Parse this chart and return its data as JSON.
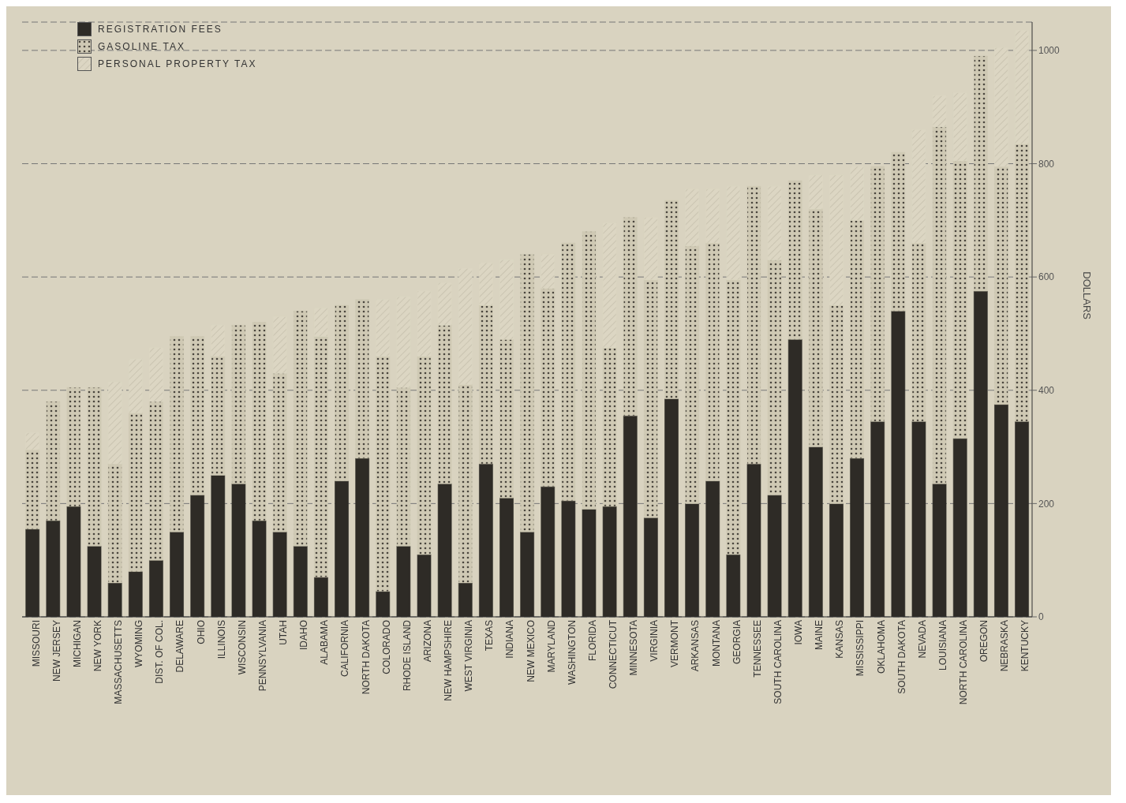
{
  "chart_data": {
    "type": "bar",
    "stacked": true,
    "ylabel": "DOLLARS",
    "categories": [
      "MISSOURI",
      "NEW JERSEY",
      "MICHIGAN",
      "NEW YORK",
      "MASSACHUSETTS",
      "WYOMING",
      "DIST. OF COL.",
      "DELAWARE",
      "OHIO",
      "ILLINOIS",
      "WISCONSIN",
      "PENNSYLVANIA",
      "UTAH",
      "IDAHO",
      "ALABAMA",
      "CALIFORNIA",
      "NORTH DAKOTA",
      "COLORADO",
      "RHODE ISLAND",
      "ARIZONA",
      "NEW HAMPSHIRE",
      "WEST VIRGINIA",
      "TEXAS",
      "INDIANA",
      "NEW MEXICO",
      "MARYLAND",
      "WASHINGTON",
      "FLORIDA",
      "CONNECTICUT",
      "MINNESOTA",
      "VIRGINIA",
      "VERMONT",
      "ARKANSAS",
      "MONTANA",
      "GEORGIA",
      "TENNESSEE",
      "SOUTH CAROLINA",
      "IOWA",
      "MAINE",
      "KANSAS",
      "MISSISSIPPI",
      "OKLAHOMA",
      "SOUTH DAKOTA",
      "NEVADA",
      "LOUISIANA",
      "NORTH CAROLINA",
      "OREGON",
      "NEBRASKA",
      "KENTUCKY"
    ],
    "series": [
      {
        "name": "REGISTRATION FEES",
        "color": "#2e2b26",
        "values": [
          155,
          170,
          195,
          125,
          60,
          80,
          100,
          150,
          215,
          250,
          235,
          170,
          150,
          125,
          70,
          240,
          280,
          45,
          125,
          110,
          235,
          60,
          270,
          210,
          150,
          230,
          205,
          190,
          195,
          355,
          175,
          385,
          200,
          240,
          110,
          270,
          215,
          490,
          300,
          200,
          280,
          345,
          540,
          345,
          235,
          315,
          575,
          375,
          345
        ]
      },
      {
        "name": "GASOLINE TAX",
        "color": "#cfc9b4",
        "values": [
          140,
          210,
          210,
          280,
          210,
          280,
          280,
          345,
          280,
          210,
          280,
          350,
          280,
          415,
          425,
          310,
          280,
          415,
          280,
          350,
          280,
          350,
          280,
          280,
          490,
          350,
          455,
          490,
          280,
          350,
          420,
          350,
          455,
          420,
          485,
          490,
          415,
          280,
          420,
          350,
          420,
          450,
          280,
          315,
          630,
          490,
          415,
          420,
          490
        ]
      },
      {
        "name": "PERSONAL PROPERTY TAX",
        "color": "#dcd6c3",
        "values": [
          30,
          null,
          null,
          null,
          145,
          95,
          95,
          null,
          null,
          55,
          null,
          null,
          100,
          null,
          50,
          null,
          null,
          100,
          160,
          115,
          75,
          205,
          75,
          140,
          null,
          60,
          null,
          null,
          220,
          null,
          110,
          null,
          100,
          95,
          165,
          null,
          130,
          null,
          60,
          230,
          95,
          null,
          null,
          200,
          55,
          120,
          null,
          210,
          200
        ]
      }
    ],
    "ylim": [
      0,
      1050
    ],
    "yticks": [
      0,
      200,
      400,
      600,
      800,
      1000
    ],
    "grid": "y",
    "legend": "top left"
  }
}
